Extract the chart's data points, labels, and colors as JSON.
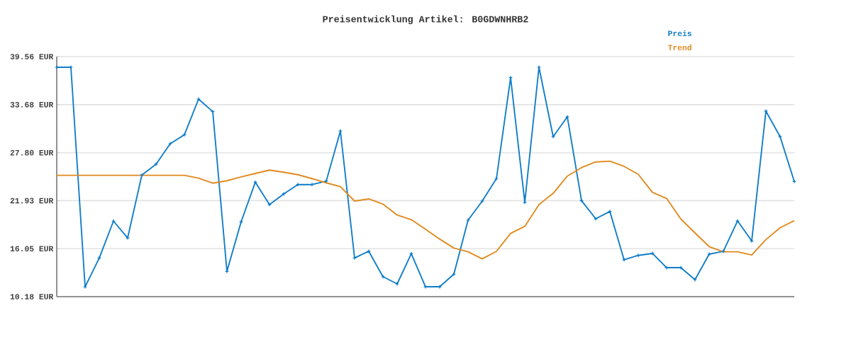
{
  "chart_data": {
    "type": "line",
    "title": "Preisentwicklung Artikel: B0GDWNHRB2",
    "categories": [
      null,
      null,
      null,
      null,
      null,
      null,
      null,
      null,
      null,
      null,
      null,
      null,
      null,
      null,
      null,
      null,
      null,
      null,
      null,
      null,
      null,
      null,
      null,
      null,
      null,
      null,
      null,
      null,
      null,
      null,
      null,
      null,
      null,
      null,
      null,
      null,
      null,
      null,
      null,
      null,
      null,
      null,
      null,
      null,
      null,
      null,
      null,
      null,
      null,
      null,
      null,
      null,
      null
    ],
    "series": [
      {
        "name": "Preis",
        "color": "#0f7dc8",
        "marker": "cross",
        "values": [
          38.26,
          38.26,
          11.39,
          14.92,
          19.43,
          17.37,
          25.06,
          26.39,
          28.9,
          30.0,
          34.36,
          32.83,
          13.27,
          19.34,
          24.19,
          21.45,
          22.75,
          23.9,
          23.9,
          24.31,
          30.46,
          14.92,
          15.73,
          12.63,
          11.74,
          15.44,
          11.39,
          11.39,
          12.93,
          19.54,
          21.88,
          24.63,
          36.99,
          21.71,
          38.26,
          29.77,
          32.19,
          21.94,
          19.71,
          20.61,
          14.69,
          15.23,
          15.47,
          13.73,
          13.73,
          12.26,
          15.38,
          15.73,
          19.45,
          17.0,
          32.89,
          29.77,
          24.28
        ]
      },
      {
        "name": "Trend",
        "color": "#e08a1e",
        "marker": "none",
        "values": [
          25.03,
          25.03,
          25.03,
          25.03,
          25.03,
          25.03,
          25.03,
          25.03,
          25.03,
          25.03,
          24.68,
          24.07,
          24.37,
          24.83,
          25.26,
          25.67,
          25.41,
          25.11,
          24.63,
          24.11,
          23.64,
          21.88,
          22.14,
          21.51,
          20.17,
          19.6,
          18.44,
          17.23,
          16.13,
          15.67,
          14.8,
          15.73,
          17.92,
          18.79,
          21.45,
          22.83,
          24.94,
          25.98,
          26.67,
          26.76,
          26.13,
          25.15,
          22.95,
          22.2,
          19.69,
          17.98,
          16.31,
          15.67,
          15.67,
          15.29,
          17.17,
          18.61,
          19.48
        ]
      }
    ],
    "ylim": [
      10.18,
      39.56
    ],
    "yticks": [
      {
        "value": 10.18,
        "label": "10.18 EUR"
      },
      {
        "value": 16.05,
        "label": "16.05 EUR"
      },
      {
        "value": 21.93,
        "label": "21.93 EUR"
      },
      {
        "value": 27.8,
        "label": "27.80 EUR"
      },
      {
        "value": 33.68,
        "label": "33.68 EUR"
      },
      {
        "value": 39.56,
        "label": "39.56 EUR"
      }
    ],
    "grid": "y",
    "legend": "top right",
    "tick_labels": "y"
  }
}
